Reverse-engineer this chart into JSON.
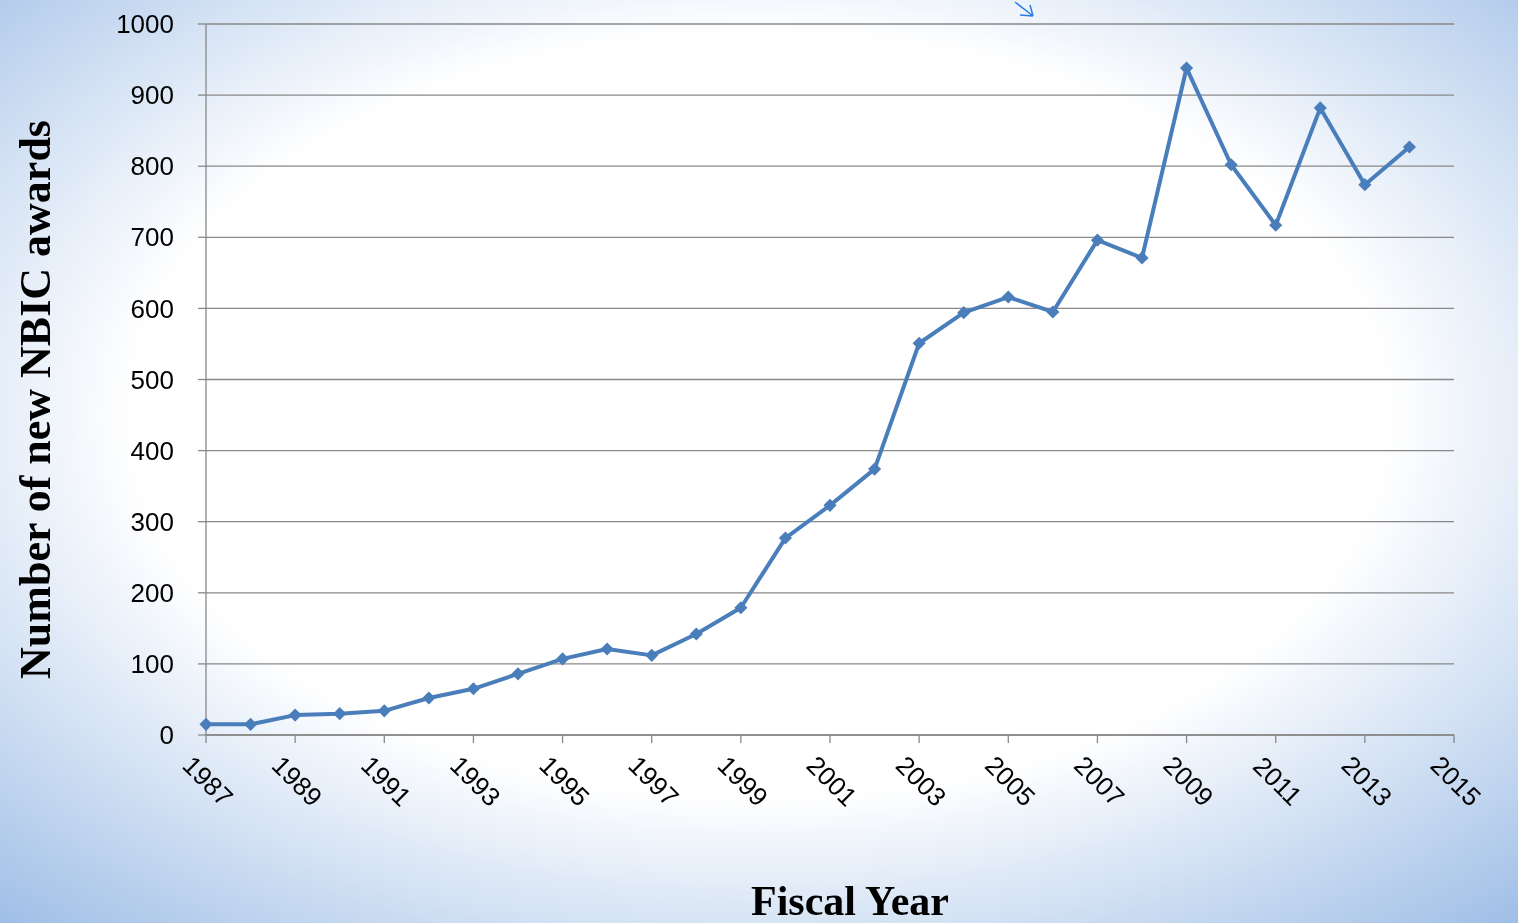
{
  "chart_data": {
    "type": "line",
    "xlabel": "Fiscal Year",
    "ylabel": "Number of new NBIC awards",
    "x": [
      1987,
      1988,
      1989,
      1990,
      1991,
      1992,
      1993,
      1994,
      1995,
      1996,
      1997,
      1998,
      1999,
      2000,
      2001,
      2002,
      2003,
      2004,
      2005,
      2006,
      2007,
      2008,
      2009,
      2010,
      2011,
      2012,
      2013,
      2014
    ],
    "series": [
      {
        "color": "#4a7ebb",
        "values": [
          15,
          15,
          28,
          30,
          34,
          52,
          65,
          86,
          107,
          121,
          112,
          142,
          179,
          277,
          323,
          374,
          551,
          594,
          616,
          595,
          696,
          671,
          938,
          802,
          717,
          882,
          774,
          827
        ]
      }
    ],
    "xlim": [
      1987,
      2015
    ],
    "xticks": [
      1987,
      1989,
      1991,
      1993,
      1995,
      1997,
      1999,
      2001,
      2003,
      2005,
      2007,
      2009,
      2011,
      2013,
      2015
    ],
    "ylim": [
      0,
      1000
    ],
    "yticks": [
      0,
      100,
      200,
      300,
      400,
      500,
      600,
      700,
      800,
      900,
      1000
    ],
    "grid": "y",
    "marker": "diamond",
    "line_style": "solid"
  }
}
